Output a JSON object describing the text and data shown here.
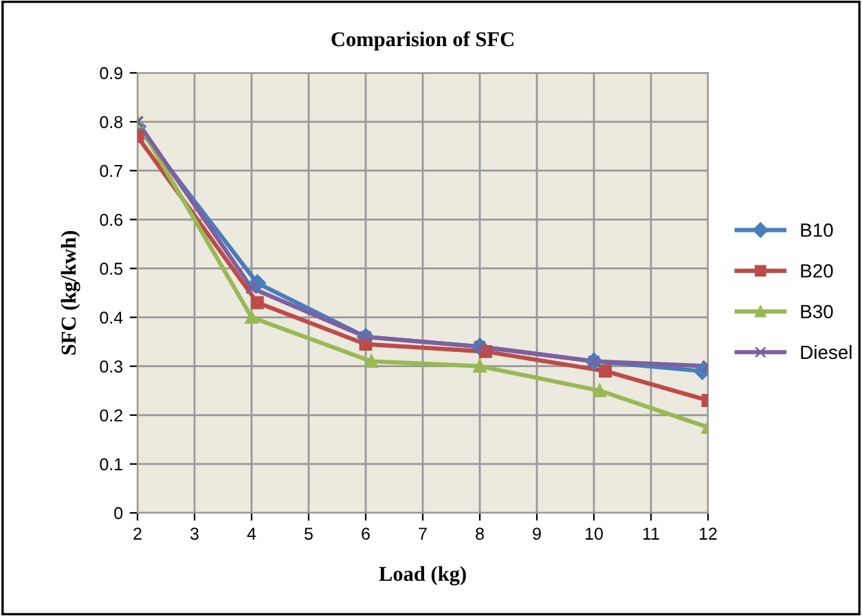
{
  "chart_data": {
    "type": "line",
    "title": "Comparision of SFC",
    "xlabel": "Load (kg)",
    "ylabel": "SFC (kg/kwh)",
    "xlim": [
      2,
      12
    ],
    "xticks": [
      2,
      3,
      4,
      5,
      6,
      7,
      8,
      9,
      10,
      11,
      12
    ],
    "ylim": [
      0,
      0.9
    ],
    "yticks": [
      0,
      0.1,
      0.2,
      0.3,
      0.4,
      0.5,
      0.6,
      0.7,
      0.8,
      0.9
    ],
    "grid": true,
    "legend": "right",
    "line_style": "solid",
    "series": [
      {
        "name": "B10",
        "color": "#4a7ebb",
        "marker": "diamond",
        "x": [
          2,
          4.1,
          6,
          8,
          10,
          11.9
        ],
        "values": [
          0.79,
          0.47,
          0.36,
          0.34,
          0.31,
          0.29
        ]
      },
      {
        "name": "B20",
        "color": "#be4b48",
        "marker": "square",
        "x": [
          2,
          4.1,
          6,
          8.1,
          10.2,
          12
        ],
        "values": [
          0.77,
          0.43,
          0.345,
          0.33,
          0.29,
          0.23
        ]
      },
      {
        "name": "B30",
        "color": "#98b954",
        "marker": "triangle",
        "x": [
          2,
          4,
          6.1,
          8,
          10.1,
          12
        ],
        "values": [
          0.8,
          0.4,
          0.31,
          0.3,
          0.25,
          0.175
        ]
      },
      {
        "name": "Diesel",
        "color": "#7d60a0",
        "marker": "cross",
        "x": [
          2,
          4,
          6,
          8,
          10,
          12
        ],
        "values": [
          0.8,
          0.46,
          0.36,
          0.34,
          0.31,
          0.3
        ]
      }
    ]
  }
}
